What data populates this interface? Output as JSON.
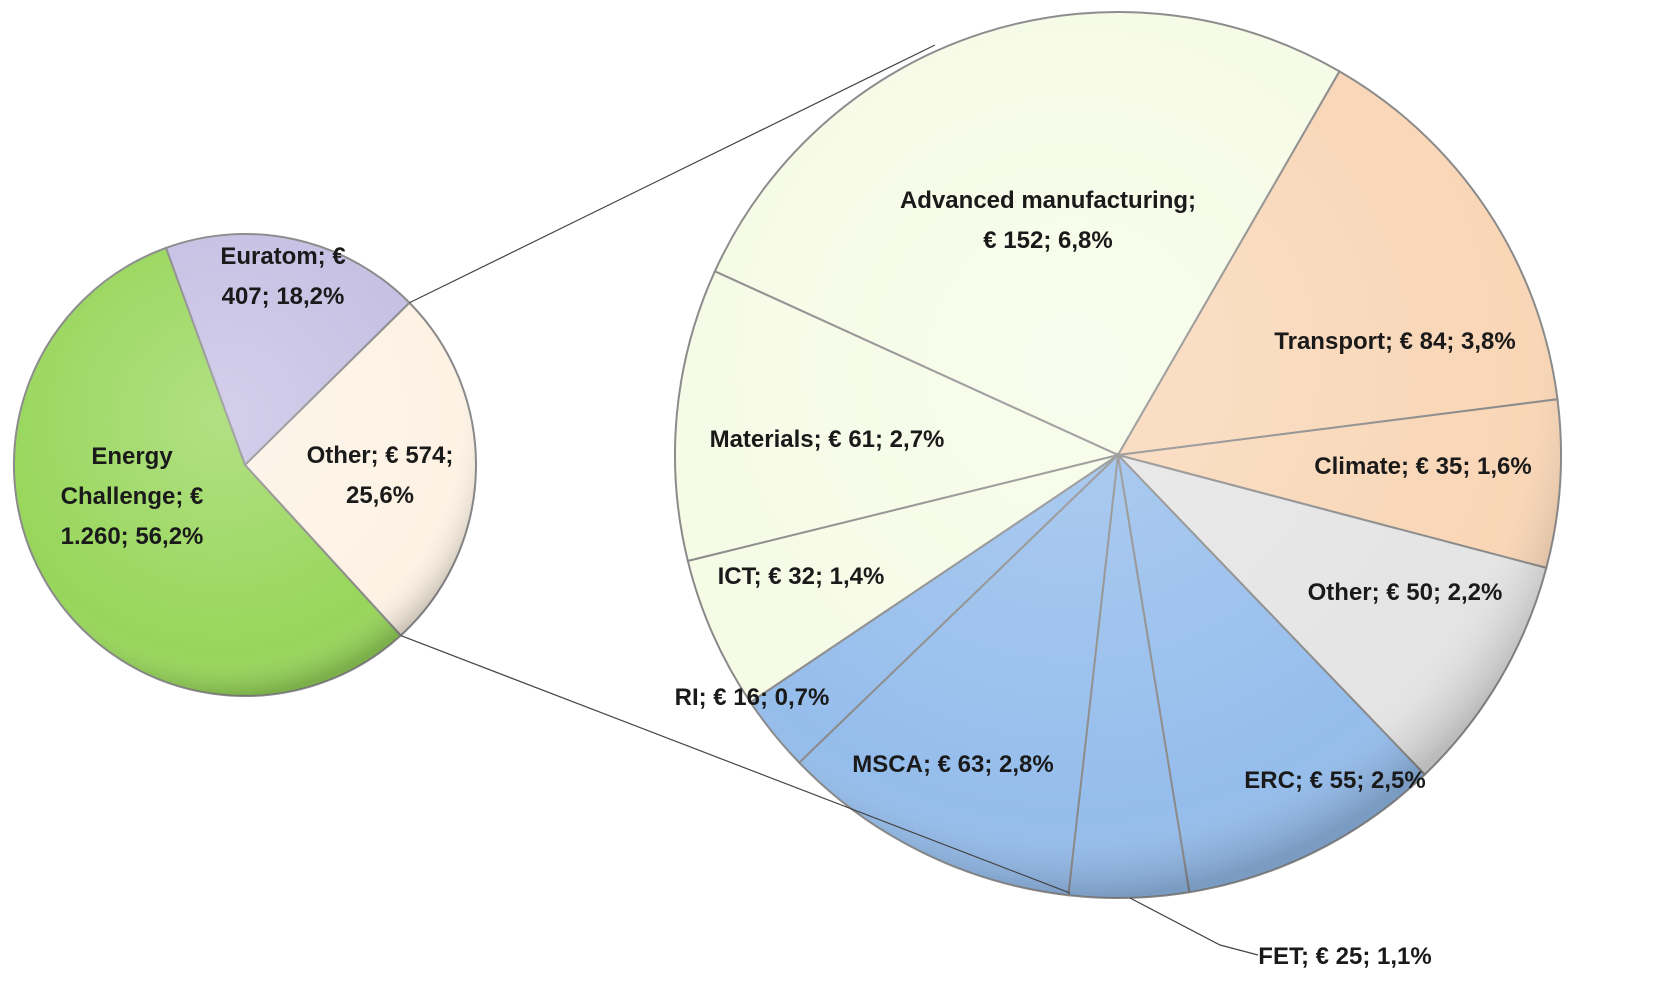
{
  "chart_data": [
    {
      "type": "pie",
      "categories": [
        "Euratom",
        "Other",
        "Energy Challenge"
      ],
      "values": [
        407,
        574,
        1260
      ],
      "value_labels": [
        "Euratom; € 407; 18,2%",
        "Other; € 574; 25,6%",
        "Energy Challenge; € 1.260; 56,2%"
      ],
      "colors": [
        "#c5bfe3",
        "#fdf2e4",
        "#97d65a"
      ]
    },
    {
      "type": "pie",
      "categories": [
        "Advanced manufacturing",
        "Transport",
        "Climate",
        "Other",
        "ERC",
        "FET",
        "MSCA",
        "RI",
        "ICT",
        "Materials"
      ],
      "values": [
        152,
        84,
        35,
        50,
        55,
        25,
        63,
        16,
        32,
        61
      ],
      "value_labels": [
        "Advanced manufacturing; € 152; 6,8%",
        "Transport; € 84; 3,8%",
        "Climate; € 35; 1,6%",
        "Other; € 50; 2,2%",
        "ERC; € 55; 2,5%",
        "FET; € 25; 1,1%",
        "MSCA; € 63; 2,8%",
        "RI; € 16; 0,7%",
        "ICT; € 32; 1,4%",
        "Materials; € 61; 2,7%"
      ],
      "colors": [
        "#f6fbe6",
        "#f9d6b6",
        "#f9d6b6",
        "#e4e4e4",
        "#95bdec",
        "#95bdec",
        "#95bdec",
        "#95bdec",
        "#f6fbe6",
        "#f6fbe6"
      ]
    }
  ]
}
